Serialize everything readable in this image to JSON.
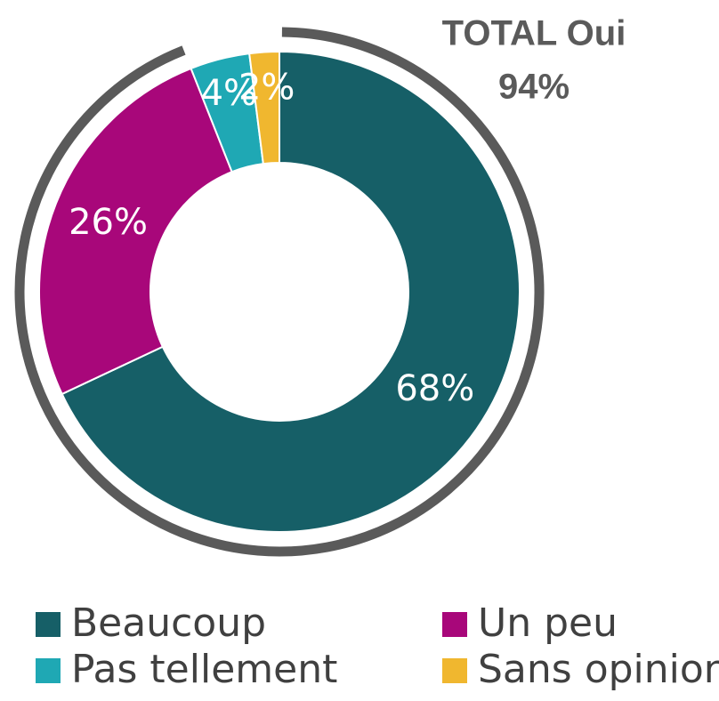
{
  "chart_data": {
    "type": "donut",
    "categories": [
      "Beaucoup",
      "Un peu",
      "Pas tellement",
      "Sans opinion"
    ],
    "values": [
      68,
      26,
      4,
      2
    ],
    "value_labels": [
      "68%",
      "26%",
      "4%",
      "2%"
    ],
    "colors": [
      "#165f67",
      "#a8077a",
      "#1fa8b4",
      "#f0b72f"
    ],
    "annotation": {
      "text": "TOTAL Oui",
      "value": 94,
      "value_label": "94%",
      "color": "#5a5a5a"
    }
  }
}
